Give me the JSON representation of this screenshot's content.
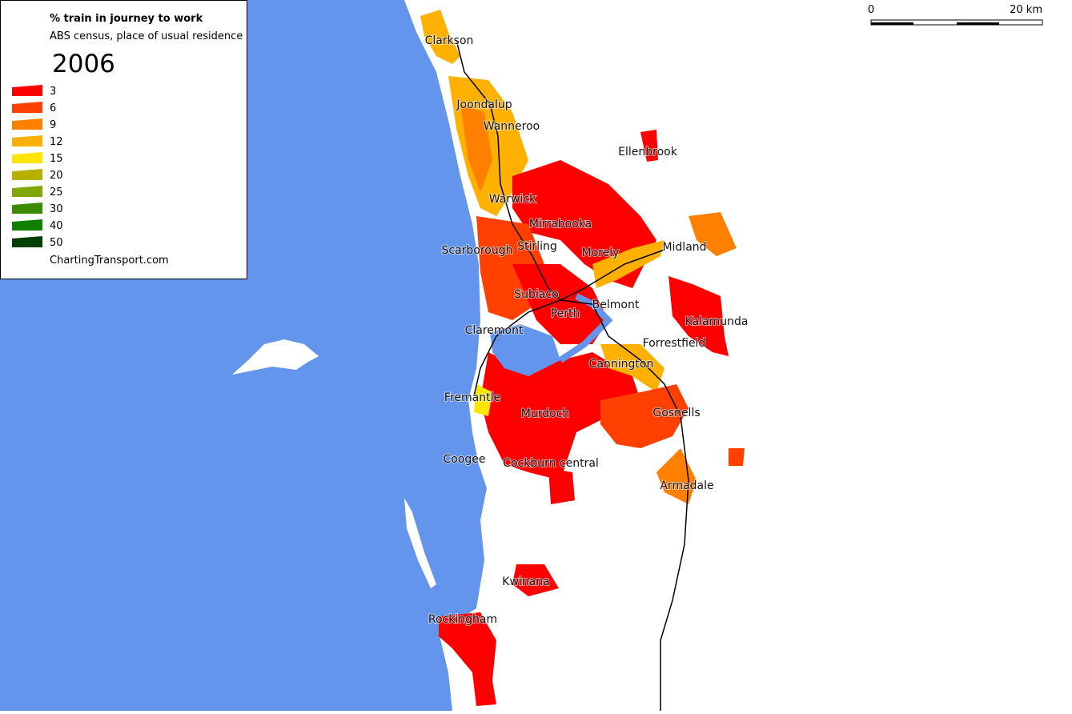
{
  "title": "% train in journey to work",
  "subtitle": "ABS census, place of usual residence",
  "year": "2006",
  "legend": [
    {
      "value": 3,
      "color": "#ff0000"
    },
    {
      "value": 6,
      "color": "#ff4000"
    },
    {
      "value": 9,
      "color": "#ff8000"
    },
    {
      "value": 12,
      "color": "#ffb000"
    },
    {
      "value": 15,
      "color": "#ffe600"
    },
    {
      "value": 20,
      "color": "#b8b000"
    },
    {
      "value": 25,
      "color": "#80a800"
    },
    {
      "value": 30,
      "color": "#3c8c00"
    },
    {
      "value": 40,
      "color": "#108000"
    },
    {
      "value": 50,
      "color": "#004000"
    }
  ],
  "credit": "ChartingTransport.com",
  "scale": {
    "start": "0",
    "end": "20 km"
  },
  "places": [
    "Clarkson",
    "Joondalup",
    "Wanneroo",
    "Ellenbrook",
    "Warwick",
    "Mirrabooka",
    "Stirling",
    "Scarborough",
    "Midland",
    "Morely",
    "Subiaco",
    "Perth",
    "Belmont",
    "Kalamunda",
    "Claremont",
    "Forrestfield",
    "Cannington",
    "Fremantle",
    "Murdoch",
    "Gosnells",
    "Coogee",
    "Cockburn central",
    "Armadale",
    "Kwinana",
    "Rockingham"
  ]
}
